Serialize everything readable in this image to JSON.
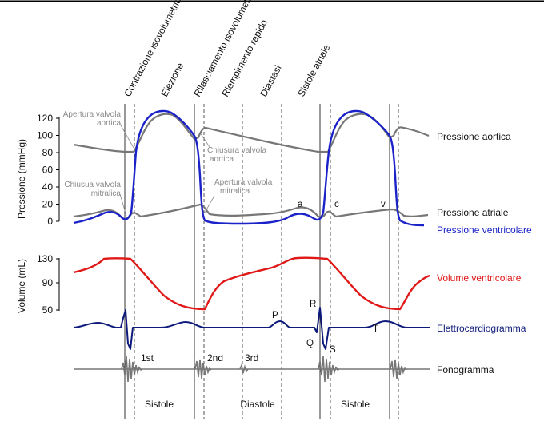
{
  "phase_labels": [
    "Contrazione isovolumetrica",
    "Eiezione",
    "Rilasciamento isovolumetrico",
    "Riempimento rapido",
    "Diastasi",
    "Sistole atriale"
  ],
  "pressure_axis": {
    "title": "Pressione (mmHg)",
    "ticks": [
      "120",
      "100",
      "80",
      "60",
      "40",
      "20",
      "0"
    ]
  },
  "volume_axis": {
    "title": "Volume (mL)",
    "ticks": [
      "130",
      "90",
      "50"
    ]
  },
  "annotations": {
    "aortic_opening": [
      "Apertura valvola",
      "aortica"
    ],
    "aortic_closing": [
      "Chiusura valvola",
      "aortica"
    ],
    "mitral_closing": [
      "Chiusua valvola",
      "mitralica"
    ],
    "mitral_opening": [
      "Apertura valvola",
      "mitralica"
    ]
  },
  "wave_labels": {
    "a": "a",
    "c": "c",
    "v": "v",
    "P": "P",
    "Q": "Q",
    "R": "R",
    "S": "S",
    "T": "T"
  },
  "heart_sounds": [
    "1st",
    "2nd",
    "3rd"
  ],
  "legend": {
    "aortic_pressure": "Pressione aortica",
    "atrial_pressure": "Pressione atriale",
    "ventricular_pressure": "Pressione ventricolare",
    "ventricular_volume": "Volume ventricolare",
    "ecg": "Elettrocardiogramma",
    "phonogram": "Fonogramma"
  },
  "bottom_labels": {
    "systole_1": "Sistole",
    "diastole": "Diastole",
    "systole_2": "Sistole"
  },
  "colors": {
    "aortic": "#777777",
    "atrial": "#777777",
    "ventricular": "#1a22c8",
    "volume": "#e01818",
    "ecg": "#0d1a7a",
    "phono": "#777777",
    "text": "#111111",
    "annotation": "#8a8a8a"
  }
}
